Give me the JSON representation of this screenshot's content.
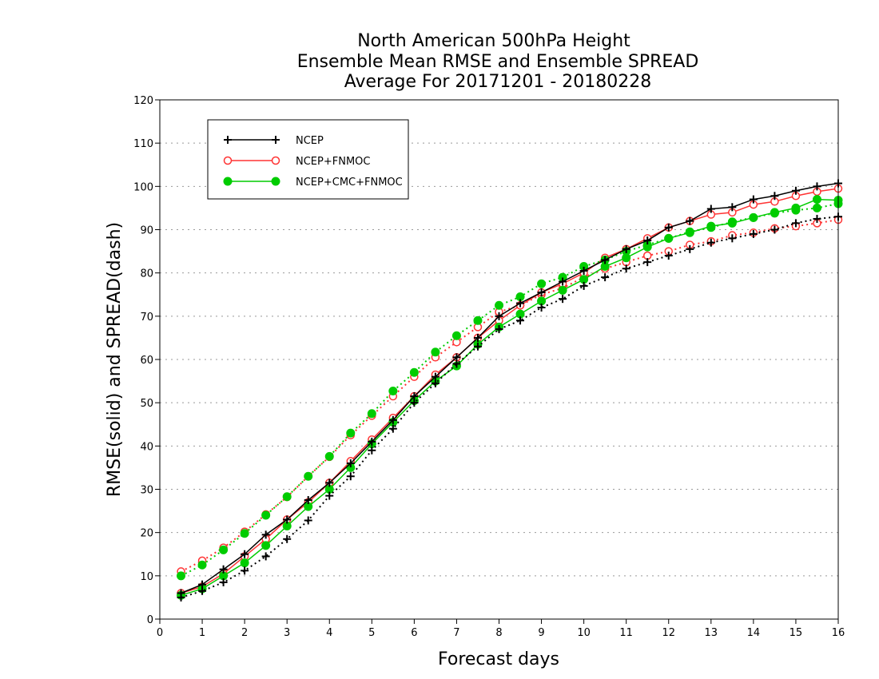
{
  "chart_data": {
    "type": "line",
    "title": [
      "North American 500hPa Height",
      "Ensemble Mean RMSE and Ensemble SPREAD",
      "Average For 20171201 - 20180228"
    ],
    "xlabel": "Forecast days",
    "ylabel": "RMSE(solid) and SPREAD(dash)",
    "xlim": [
      0,
      16
    ],
    "ylim": [
      0,
      120
    ],
    "xticks": [
      0,
      1,
      2,
      3,
      4,
      5,
      6,
      7,
      8,
      9,
      10,
      11,
      12,
      13,
      14,
      15,
      16
    ],
    "yticks": [
      0,
      10,
      20,
      30,
      40,
      50,
      60,
      70,
      80,
      90,
      100,
      110,
      120
    ],
    "grid": "horizontal dotted",
    "legend_position": "top-left",
    "x": [
      0.5,
      1,
      1.5,
      2,
      2.5,
      3,
      3.5,
      4,
      4.5,
      5,
      5.5,
      6,
      6.5,
      7,
      7.5,
      8,
      8.5,
      9,
      9.5,
      10,
      10.5,
      11,
      11.5,
      12,
      12.5,
      13,
      13.5,
      14,
      14.5,
      15,
      15.5,
      16
    ],
    "series": [
      {
        "name": "NCEP",
        "color": "#000000",
        "marker": "plus",
        "rmse": [
          6,
          8,
          11.5,
          15,
          19.5,
          23,
          27.5,
          31.5,
          36,
          41,
          46,
          51.5,
          56,
          60.5,
          65,
          70,
          73,
          75.5,
          78,
          80.5,
          83,
          85.5,
          87.5,
          90.5,
          92,
          94.8,
          95.2,
          97,
          97.8,
          99,
          100,
          100.7
        ],
        "spread": [
          5,
          6.5,
          8.5,
          11.2,
          14.5,
          18.5,
          22.8,
          28.5,
          33,
          39,
          44,
          50,
          54.5,
          59,
          63,
          67,
          69,
          72,
          74,
          77,
          79,
          81,
          82.5,
          84,
          85.5,
          87,
          88,
          89,
          90,
          91.5,
          92.5,
          93
        ]
      },
      {
        "name": "NCEP+FNMOC",
        "color": "#ff3333",
        "marker": "open-circle",
        "rmse": [
          6,
          7.5,
          10.5,
          14.5,
          18.5,
          23,
          27,
          31.5,
          36.5,
          41.5,
          46.5,
          51.5,
          56.5,
          60.5,
          65,
          69,
          72.5,
          75.5,
          77.5,
          80,
          83.5,
          85.5,
          88,
          90.5,
          92,
          93.5,
          94,
          95.8,
          96.5,
          97.8,
          98.8,
          99.5
        ],
        "spread": [
          11,
          13.5,
          16.5,
          20.2,
          24.2,
          28.2,
          33,
          37.5,
          42.5,
          47,
          51.5,
          56,
          60.5,
          64,
          67.5,
          71,
          72.5,
          75,
          76.5,
          79,
          81,
          82.5,
          84,
          85,
          86.5,
          87.3,
          88.7,
          89.3,
          90.3,
          90.8,
          91.5,
          92.3
        ]
      },
      {
        "name": "NCEP+CMC+FNMOC",
        "color": "#00cc00",
        "marker": "filled-circle",
        "rmse": [
          5.5,
          7,
          10,
          13,
          17,
          21.5,
          26,
          30,
          35,
          40.5,
          45.5,
          50.5,
          55,
          58.5,
          63.5,
          67.5,
          70.5,
          73.5,
          76,
          78.5,
          81.5,
          83.5,
          86,
          88,
          89.3,
          90.8,
          91.5,
          92.8,
          94,
          95,
          97,
          96.8
        ],
        "spread": [
          10,
          12.5,
          16,
          19.8,
          24,
          28.3,
          33,
          37.6,
          43,
          47.5,
          52.7,
          57,
          61.7,
          65.5,
          69,
          72.5,
          74.5,
          77.5,
          79,
          81.5,
          83,
          85,
          86.5,
          88,
          89.5,
          90.5,
          91.8,
          92.8,
          93.8,
          94.5,
          95,
          96
        ]
      }
    ]
  }
}
